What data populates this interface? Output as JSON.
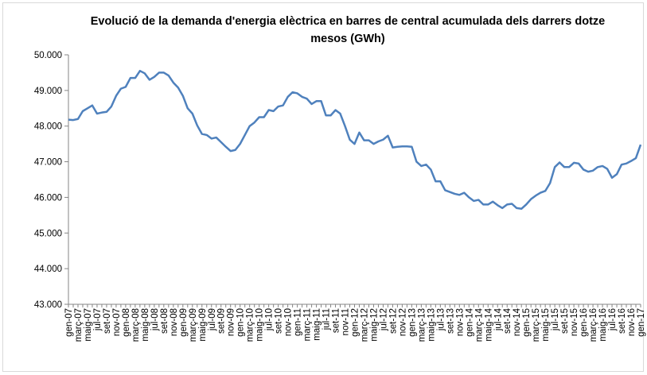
{
  "chart_data": {
    "type": "line",
    "title": "Evolució de la demanda d'energia elèctrica en barres de central acumulada dels darrers dotze mesos (GWh)",
    "categories": [
      "gen-07",
      null,
      "març-07",
      null,
      "maig-07",
      null,
      "jul-07",
      null,
      "set-07",
      null,
      "nov-07",
      null,
      "gen-08",
      null,
      "març-08",
      null,
      "maig-08",
      null,
      "jul-08",
      null,
      "set-08",
      null,
      "nov-08",
      null,
      "gen-09",
      null,
      "març-09",
      null,
      "maig-09",
      null,
      "jul-09",
      null,
      "set-09",
      null,
      "nov-09",
      null,
      "gen-10",
      null,
      "març-10",
      null,
      "maig-10",
      null,
      "jul-10",
      null,
      "set-10",
      null,
      "nov-10",
      null,
      "gen-11",
      null,
      "març-11",
      null,
      "maig-11",
      null,
      "jul-11",
      null,
      "set-11",
      null,
      "nov-11",
      null,
      "gen-12",
      null,
      "març-12",
      null,
      "maig-12",
      null,
      "jul-12",
      null,
      "set-12",
      null,
      "nov-12",
      null,
      "gen-13",
      null,
      "març-13",
      null,
      "maig-13",
      null,
      "jul-13",
      null,
      "set-13",
      null,
      "nov-13",
      null,
      "gen-14",
      null,
      "març-14",
      null,
      "maig-14",
      null,
      "jul-14",
      null,
      "set-14",
      null,
      "nov-14",
      null,
      "gen-15",
      null,
      "març-15",
      null,
      "maig-15",
      null,
      "jul-15",
      null,
      "set-15",
      null,
      "nov-15",
      null,
      "gen-16",
      null,
      "març-16",
      null,
      "maig-16",
      null,
      "jul-16",
      null,
      "set-16",
      null,
      "nov-16",
      null,
      "gen-17"
    ],
    "values": [
      48180,
      48170,
      48200,
      48420,
      48500,
      48580,
      48350,
      48380,
      48400,
      48550,
      48850,
      49050,
      49100,
      49350,
      49350,
      49550,
      49480,
      49300,
      49380,
      49500,
      49500,
      49420,
      49220,
      49080,
      48850,
      48500,
      48350,
      48020,
      47780,
      47750,
      47650,
      47680,
      47550,
      47420,
      47300,
      47330,
      47500,
      47750,
      48000,
      48100,
      48250,
      48250,
      48450,
      48420,
      48550,
      48580,
      48820,
      48950,
      48920,
      48820,
      48770,
      48620,
      48700,
      48700,
      48300,
      48300,
      48450,
      48350,
      48000,
      47620,
      47500,
      47820,
      47600,
      47600,
      47500,
      47570,
      47620,
      47730,
      47400,
      47420,
      47430,
      47430,
      47420,
      47000,
      46880,
      46920,
      46780,
      46450,
      46450,
      46200,
      46150,
      46100,
      46070,
      46130,
      46000,
      45900,
      45930,
      45800,
      45800,
      45880,
      45780,
      45700,
      45800,
      45820,
      45700,
      45680,
      45800,
      45950,
      46050,
      46130,
      46180,
      46400,
      46850,
      46980,
      46850,
      46850,
      46970,
      46950,
      46780,
      46720,
      46750,
      46850,
      46880,
      46800,
      46550,
      46650,
      46920,
      46950,
      47020,
      47100,
      47480
    ],
    "color": "#4f81bd",
    "ylim": [
      43000,
      50000
    ],
    "yticks": [
      {
        "value": 43000,
        "label": "43.000"
      },
      {
        "value": 44000,
        "label": "44.000"
      },
      {
        "value": 45000,
        "label": "45.000"
      },
      {
        "value": 46000,
        "label": "46.000"
      },
      {
        "value": 47000,
        "label": "47.000"
      },
      {
        "value": 48000,
        "label": "48.000"
      },
      {
        "value": 49000,
        "label": "49.000"
      },
      {
        "value": 50000,
        "label": "50.000"
      }
    ],
    "grid": false
  }
}
